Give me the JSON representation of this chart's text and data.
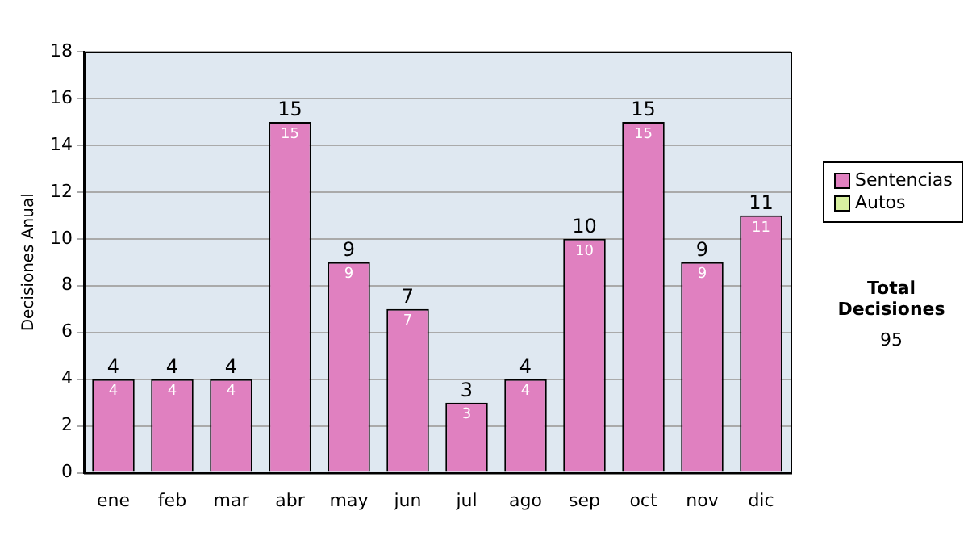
{
  "chart_data": {
    "type": "bar",
    "ylabel": "Decisiones Anual",
    "categories": [
      "ene",
      "feb",
      "mar",
      "abr",
      "may",
      "jun",
      "jul",
      "ago",
      "sep",
      "oct",
      "nov",
      "dic"
    ],
    "series": [
      {
        "name": "Sentencias",
        "color": "#e080c0",
        "values": [
          4,
          4,
          4,
          15,
          9,
          7,
          3,
          4,
          10,
          15,
          9,
          11
        ]
      },
      {
        "name": "Autos",
        "color": "#d8f0a0",
        "values": [
          null,
          null,
          null,
          null,
          null,
          null,
          null,
          null,
          null,
          null,
          null,
          null
        ]
      }
    ],
    "stacked": true,
    "data_labels": true,
    "totals": [
      "4",
      "4",
      "4",
      "15",
      "9",
      "7",
      "3",
      "4",
      "10",
      "15",
      "9",
      "11"
    ],
    "ylim": [
      0,
      18
    ],
    "yticks": [
      0,
      2,
      4,
      6,
      8,
      10,
      12,
      14,
      16,
      18
    ],
    "grid": "y",
    "legend": "right",
    "annotations": [
      "Total Decisiones",
      "95"
    ]
  }
}
